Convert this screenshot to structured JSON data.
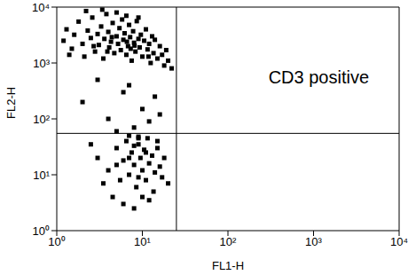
{
  "chart_data": {
    "type": "scatter",
    "xlabel": "FL1-H",
    "ylabel": "FL2-H",
    "log": true,
    "grid": false,
    "color": "#000000",
    "marker": "square",
    "xlim": [
      1,
      10000
    ],
    "ylim": [
      1,
      10000
    ],
    "xticks": [
      {
        "value": 1,
        "label": "10⁰"
      },
      {
        "value": 10,
        "label": "10¹"
      },
      {
        "value": 100,
        "label": "10²"
      },
      {
        "value": 1000,
        "label": "10³"
      },
      {
        "value": 10000,
        "label": "10⁴"
      }
    ],
    "yticks": [
      {
        "value": 1,
        "label": "10⁰"
      },
      {
        "value": 10,
        "label": "10¹"
      },
      {
        "value": 100,
        "label": "10²"
      },
      {
        "value": 1000,
        "label": "10³"
      },
      {
        "value": 10000,
        "label": "10⁴"
      }
    ],
    "quadrant_x": 25,
    "quadrant_y": 55,
    "annotations": [
      {
        "text": "CD3 positive",
        "x": 1150,
        "y": 560
      }
    ],
    "x": [
      1.2,
      1.3,
      1.5,
      1.6,
      1.8,
      2,
      2.1,
      2.3,
      2.5,
      2.6,
      2.8,
      3,
      3.1,
      3.3,
      3.5,
      3.6,
      3.8,
      4,
      4.1,
      4.3,
      4.5,
      4.7,
      5,
      5.2,
      5.4,
      5.6,
      5.8,
      6,
      6.2,
      6.5,
      6.8,
      7,
      7.2,
      7.5,
      7.8,
      8,
      8.3,
      8.6,
      9,
      9.3,
      9.6,
      10,
      10.5,
      11,
      11.5,
      12,
      12.5,
      13,
      13.5,
      14,
      15,
      16,
      17,
      18,
      19,
      20,
      22,
      2.2,
      3.4,
      5,
      6.5,
      9,
      4.4,
      6.6,
      8.1,
      11.8,
      1.4,
      2.7,
      3.9,
      7.3,
      3,
      6,
      10,
      4,
      8,
      14,
      2,
      5,
      12,
      7,
      16,
      9,
      3,
      4,
      5,
      5.5,
      6,
      6.5,
      7,
      7.5,
      8,
      8.5,
      9,
      9.5,
      10,
      10.5,
      11,
      11.5,
      12,
      13,
      13.5,
      14,
      15,
      16,
      17,
      18,
      20,
      4.5,
      6,
      8,
      10,
      12,
      7,
      9,
      5,
      3.5,
      2.5,
      15,
      11,
      8,
      7,
      9
    ],
    "values": [
      2500,
      4000,
      1800,
      3200,
      5500,
      2200,
      1300,
      3800,
      2800,
      6500,
      1600,
      3300,
      2100,
      4500,
      1200,
      2700,
      7500,
      3600,
      1900,
      2400,
      5200,
      1500,
      3000,
      2200,
      4200,
      1700,
      6000,
      2600,
      3400,
      1400,
      2000,
      4800,
      2900,
      1100,
      3700,
      2300,
      1600,
      5600,
      2700,
      1900,
      3200,
      1300,
      2500,
      4000,
      1750,
      2200,
      1000,
      3000,
      1500,
      2600,
      1200,
      2000,
      1400,
      900,
      1700,
      1100,
      800,
      8500,
      9000,
      8000,
      7000,
      6500,
      2900,
      2400,
      2050,
      1300,
      1400,
      2000,
      1600,
      1800,
      500,
      300,
      150,
      100,
      70,
      250,
      200,
      60,
      90,
      400,
      120,
      45,
      20,
      12,
      30,
      8,
      18,
      40,
      10,
      25,
      15,
      6,
      35,
      20,
      12,
      28,
      8,
      45,
      16,
      22,
      5,
      11,
      30,
      14,
      9,
      20,
      7,
      4,
      3,
      2.5,
      4,
      3.5,
      50,
      48,
      15,
      7,
      35,
      40,
      25,
      33,
      20,
      9
    ]
  }
}
